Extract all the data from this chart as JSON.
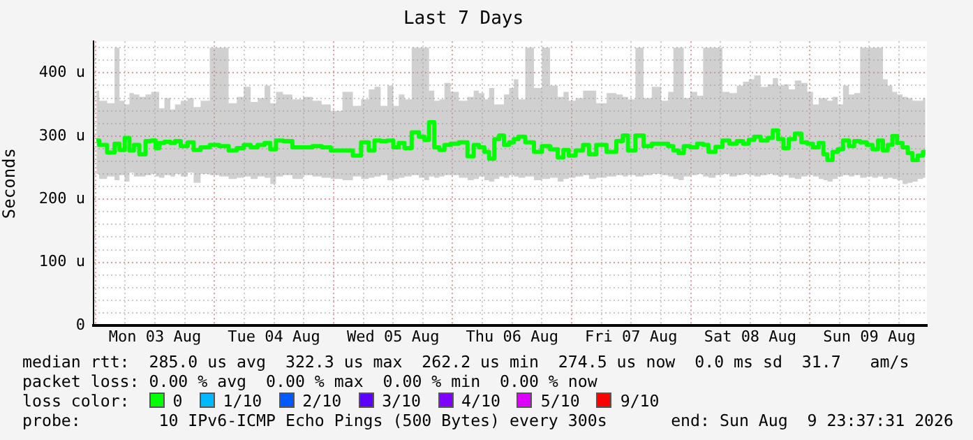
{
  "chart_data": {
    "type": "step",
    "title": "Last 7 Days",
    "ylabel": "Seconds",
    "xlim": [
      "2026-08-02T23:37",
      "2026-08-09T23:37"
    ],
    "xticks": [
      {
        "value": "2026-08-03T00:00",
        "label": null
      },
      {
        "value": "2026-08-03T06:00",
        "label": null
      },
      {
        "value": "2026-08-03T12:00",
        "label": "Mon 03 Aug"
      },
      {
        "value": "2026-08-03T18:00",
        "label": null
      },
      {
        "value": "2026-08-04T00:00",
        "label": null
      },
      {
        "value": "2026-08-04T06:00",
        "label": null
      },
      {
        "value": "2026-08-04T12:00",
        "label": "Tue 04 Aug"
      },
      {
        "value": "2026-08-04T18:00",
        "label": null
      },
      {
        "value": "2026-08-05T00:00",
        "label": null
      },
      {
        "value": "2026-08-05T06:00",
        "label": null
      },
      {
        "value": "2026-08-05T12:00",
        "label": "Wed 05 Aug"
      },
      {
        "value": "2026-08-05T18:00",
        "label": null
      },
      {
        "value": "2026-08-06T00:00",
        "label": null
      },
      {
        "value": "2026-08-06T06:00",
        "label": null
      },
      {
        "value": "2026-08-06T12:00",
        "label": "Thu 06 Aug"
      },
      {
        "value": "2026-08-06T18:00",
        "label": null
      },
      {
        "value": "2026-08-07T00:00",
        "label": null
      },
      {
        "value": "2026-08-07T06:00",
        "label": null
      },
      {
        "value": "2026-08-07T12:00",
        "label": "Fri 07 Aug"
      },
      {
        "value": "2026-08-07T18:00",
        "label": null
      },
      {
        "value": "2026-08-08T00:00",
        "label": null
      },
      {
        "value": "2026-08-08T06:00",
        "label": null
      },
      {
        "value": "2026-08-08T12:00",
        "label": "Sat 08 Aug"
      },
      {
        "value": "2026-08-08T18:00",
        "label": null
      },
      {
        "value": "2026-08-09T00:00",
        "label": null
      },
      {
        "value": "2026-08-09T06:00",
        "label": null
      },
      {
        "value": "2026-08-09T12:00",
        "label": "Sun 09 Aug"
      },
      {
        "value": "2026-08-09T18:00",
        "label": null
      }
    ],
    "ylim": [
      0,
      450
    ],
    "yticks": [
      0,
      {
        "value": 20,
        "label": null
      },
      {
        "value": 40,
        "label": null
      },
      {
        "value": 60,
        "label": null
      },
      {
        "value": 80,
        "label": null
      },
      {
        "value": 100,
        "label": "100 u"
      },
      {
        "value": 120,
        "label": null
      },
      {
        "value": 140,
        "label": null
      },
      {
        "value": 160,
        "label": null
      },
      {
        "value": 180,
        "label": null
      },
      {
        "value": 200,
        "label": "200 u"
      },
      {
        "value": 220,
        "label": null
      },
      {
        "value": 240,
        "label": null
      },
      {
        "value": 260,
        "label": null
      },
      {
        "value": 280,
        "label": null
      },
      {
        "value": 300,
        "label": "300 u"
      },
      {
        "value": 320,
        "label": null
      },
      {
        "value": 340,
        "label": null
      },
      {
        "value": 360,
        "label": null
      },
      {
        "value": 380,
        "label": null
      },
      {
        "value": 400,
        "label": "400 u"
      },
      {
        "value": 420,
        "label": null
      },
      {
        "value": 440,
        "label": null
      }
    ],
    "grid": true,
    "legend": "bottom",
    "legend_title": "loss color:",
    "series": [
      {
        "name": "0",
        "color": "#00ff00",
        "x": [
          "2026-08-03T00:12",
          "2026-08-03T01:18",
          "2026-08-03T03:24",
          "2026-08-03T04:18",
          "2026-08-03T05:24",
          "2026-08-03T06:24",
          "2026-08-03T07:18",
          "2026-08-03T08:12",
          "2026-08-03T09:30",
          "2026-08-03T10:42",
          "2026-08-03T11:48",
          "2026-08-03T12:30",
          "2026-08-03T13:12",
          "2026-08-03T14:36",
          "2026-08-03T15:36",
          "2026-08-03T16:30",
          "2026-08-03T17:54",
          "2026-08-03T19:18",
          "2026-08-03T20:18",
          "2026-08-03T22:06",
          "2026-08-04T00:00",
          "2026-08-04T01:54",
          "2026-08-04T03:48",
          "2026-08-04T05:12",
          "2026-08-04T06:36",
          "2026-08-04T08:00",
          "2026-08-04T09:24",
          "2026-08-04T10:48",
          "2026-08-04T11:42",
          "2026-08-04T13:06",
          "2026-08-04T14:30",
          "2026-08-04T16:54",
          "2026-08-04T18:48",
          "2026-08-04T20:42",
          "2026-08-04T22:30",
          "2026-08-05T00:24",
          "2026-08-05T03:12",
          "2026-08-05T04:36",
          "2026-08-05T06:30",
          "2026-08-05T07:42",
          "2026-08-05T08:48",
          "2026-08-05T10:12",
          "2026-08-05T11:30",
          "2026-08-05T12:36",
          "2026-08-05T13:42",
          "2026-08-05T14:54",
          "2026-08-05T16:36",
          "2026-08-05T17:48",
          "2026-08-05T18:48",
          "2026-08-05T19:42",
          "2026-08-05T20:54",
          "2026-08-05T21:48",
          "2026-08-05T22:54",
          "2026-08-06T00:18",
          "2026-08-06T02:12",
          "2026-08-06T03:48",
          "2026-08-06T04:42",
          "2026-08-06T05:54",
          "2026-08-06T06:54",
          "2026-08-06T07:48",
          "2026-08-06T09:00",
          "2026-08-06T09:48",
          "2026-08-06T10:54",
          "2026-08-06T11:54",
          "2026-08-06T12:48",
          "2026-08-06T13:42",
          "2026-08-06T15:36",
          "2026-08-06T17:12",
          "2026-08-06T18:48",
          "2026-08-06T20:30",
          "2026-08-06T21:54",
          "2026-08-06T22:48",
          "2026-08-07T00:00",
          "2026-08-07T01:36",
          "2026-08-07T03:00",
          "2026-08-07T04:00",
          "2026-08-07T05:54",
          "2026-08-07T08:12",
          "2026-08-07T09:48",
          "2026-08-07T10:48",
          "2026-08-07T11:54",
          "2026-08-07T13:48",
          "2026-08-07T15:12",
          "2026-08-07T17:06",
          "2026-08-07T19:00",
          "2026-08-07T19:54",
          "2026-08-07T21:06",
          "2026-08-07T22:00",
          "2026-08-07T23:12",
          "2026-08-08T00:36",
          "2026-08-08T02:00",
          "2026-08-08T03:00",
          "2026-08-08T04:12",
          "2026-08-08T05:48",
          "2026-08-08T07:00",
          "2026-08-08T08:36",
          "2026-08-08T10:00",
          "2026-08-08T11:06",
          "2026-08-08T12:18",
          "2026-08-08T13:18",
          "2026-08-08T14:54",
          "2026-08-08T16:06",
          "2026-08-08T17:00",
          "2026-08-08T18:12",
          "2026-08-08T19:12",
          "2026-08-08T20:18",
          "2026-08-08T21:42",
          "2026-08-08T22:54",
          "2026-08-09T00:06",
          "2026-08-09T01:12",
          "2026-08-09T02:24",
          "2026-08-09T03:06",
          "2026-08-09T04:00",
          "2026-08-09T05:12",
          "2026-08-09T06:06",
          "2026-08-09T07:18",
          "2026-08-09T08:30",
          "2026-08-09T09:24",
          "2026-08-09T10:54",
          "2026-08-09T12:06",
          "2026-08-09T13:12",
          "2026-08-09T14:18",
          "2026-08-09T15:12",
          "2026-08-09T16:12",
          "2026-08-09T17:06",
          "2026-08-09T18:06",
          "2026-08-09T19:18",
          "2026-08-09T20:12",
          "2026-08-09T21:12",
          "2026-08-09T22:18",
          "2026-08-09T23:18"
        ],
        "values": [
          293,
          286,
          274,
          288,
          278,
          297,
          277,
          286,
          271,
          292,
          293,
          281,
          289,
          291,
          289,
          292,
          284,
          290,
          278,
          282,
          286,
          284,
          277,
          281,
          286,
          282,
          286,
          289,
          279,
          293,
          292,
          282,
          282,
          284,
          282,
          277,
          277,
          269,
          290,
          277,
          293,
          292,
          293,
          282,
          289,
          281,
          306,
          299,
          294,
          322,
          282,
          278,
          286,
          288,
          290,
          268,
          286,
          282,
          275,
          264,
          295,
          301,
          286,
          290,
          295,
          299,
          290,
          275,
          284,
          279,
          266,
          278,
          269,
          277,
          286,
          271,
          286,
          275,
          292,
          301,
          277,
          301,
          284,
          288,
          288,
          284,
          277,
          273,
          284,
          282,
          288,
          286,
          275,
          283,
          293,
          288,
          292,
          288,
          294,
          299,
          293,
          297,
          309,
          295,
          281,
          295,
          304,
          290,
          288,
          282,
          289,
          271,
          262,
          275,
          279,
          293,
          284,
          292,
          290,
          286,
          279,
          293,
          277,
          286,
          300,
          289,
          282,
          273,
          262,
          269,
          275
        ],
        "lower": [
          240,
          232,
          236,
          230,
          238,
          228,
          242,
          236,
          236,
          238,
          240,
          236,
          234,
          238,
          236,
          240,
          236,
          242,
          226,
          240,
          238,
          236,
          232,
          234,
          236,
          232,
          236,
          234,
          224,
          236,
          238,
          232,
          238,
          236,
          234,
          232,
          230,
          236,
          232,
          234,
          236,
          238,
          230,
          232,
          234,
          236,
          238,
          234,
          230,
          236,
          234,
          236,
          238,
          238,
          234,
          230,
          232,
          236,
          230,
          228,
          232,
          236,
          234,
          238,
          236,
          234,
          236,
          230,
          232,
          234,
          228,
          232,
          234,
          236,
          238,
          232,
          234,
          236,
          238,
          236,
          238,
          236,
          238,
          240,
          238,
          236,
          232,
          230,
          236,
          238,
          240,
          236,
          234,
          238,
          240,
          236,
          238,
          240,
          238,
          236,
          238,
          240,
          238,
          236,
          238,
          234,
          232,
          236,
          238,
          236,
          232,
          230,
          228,
          232,
          236,
          238,
          236,
          238,
          234,
          236,
          234,
          236,
          232,
          234,
          232,
          230,
          224,
          226,
          228,
          232,
          234
        ],
        "upper": [
          372,
          356,
          352,
          440,
          356,
          350,
          368,
          366,
          362,
          366,
          370,
          370,
          344,
          360,
          342,
          350,
          356,
          360,
          346,
          356,
          440,
          440,
          352,
          362,
          378,
          354,
          360,
          380,
          352,
          370,
          366,
          358,
          362,
          356,
          350,
          340,
          370,
          348,
          358,
          374,
          378,
          348,
          380,
          348,
          366,
          358,
          440,
          440,
          440,
          372,
          356,
          358,
          384,
          370,
          356,
          362,
          372,
          368,
          358,
          376,
          350,
          350,
          366,
          376,
          390,
          358,
          440,
          376,
          440,
          380,
          362,
          370,
          356,
          360,
          372,
          372,
          352,
          368,
          366,
          362,
          358,
          440,
          360,
          378,
          356,
          370,
          440,
          440,
          360,
          370,
          364,
          440,
          440,
          440,
          370,
          368,
          380,
          386,
          390,
          396,
          378,
          382,
          392,
          380,
          382,
          374,
          388,
          384,
          370,
          350,
          360,
          360,
          356,
          362,
          350,
          380,
          366,
          368,
          440,
          440,
          440,
          440,
          390,
          380,
          370,
          366,
          362,
          360,
          356,
          356,
          360
        ]
      },
      {
        "name": "1/10",
        "color": "#00b8ff"
      },
      {
        "name": "2/10",
        "color": "#0059ff"
      },
      {
        "name": "3/10",
        "color": "#5e00ff"
      },
      {
        "name": "4/10",
        "color": "#7e00ff"
      },
      {
        "name": "5/10",
        "color": "#dd00ff"
      },
      {
        "name": "9/10",
        "color": "#ff0000"
      }
    ],
    "annotations": [
      "median rtt:  285.0 us avg  322.3 us max  262.2 us min  274.5 us now  0.0 ms sd  31.7   am/s",
      "packet loss: 0.00 % avg  0.00 % max  0.00 % min  0.00 % now",
      "probe:        10 IPv6-ICMP Echo Pings (500 Bytes) every 300s",
      "end: Sun Aug  9 23:37:31 2026"
    ]
  }
}
